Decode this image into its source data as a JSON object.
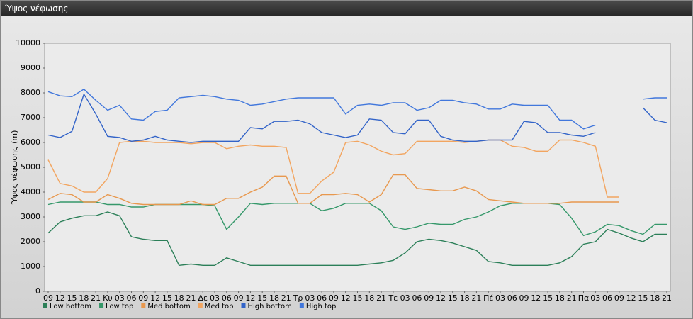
{
  "window_title": "Ύψος νέφωσης",
  "chart_data": {
    "type": "line",
    "ylabel": "Ύψος νέφωσης (m)",
    "categories": [
      "09",
      "12",
      "15",
      "18",
      "21",
      "Κυ",
      "03",
      "06",
      "09",
      "12",
      "15",
      "18",
      "21",
      "Δε",
      "03",
      "06",
      "09",
      "12",
      "15",
      "18",
      "21",
      "Τρ",
      "03",
      "06",
      "09",
      "12",
      "15",
      "18",
      "21",
      "Τε",
      "03",
      "06",
      "09",
      "12",
      "15",
      "18",
      "21",
      "Πέ",
      "03",
      "06",
      "09",
      "12",
      "15",
      "18",
      "21",
      "Πα",
      "03",
      "06",
      "09",
      "12",
      "15",
      "18",
      "21"
    ],
    "ylim": [
      0,
      10000
    ],
    "yticks": [
      0,
      1000,
      2000,
      3000,
      4000,
      5000,
      6000,
      7000,
      8000,
      9000,
      10000
    ],
    "grid": false,
    "series": [
      {
        "name": "Low bottom",
        "color": "#2b7f58",
        "values": [
          2350,
          2800,
          2950,
          3050,
          3050,
          3200,
          3050,
          2200,
          2100,
          2050,
          2050,
          1050,
          1100,
          1050,
          1050,
          1350,
          1200,
          1050,
          1050,
          1050,
          1050,
          1050,
          1050,
          1050,
          1050,
          1050,
          1050,
          1100,
          1150,
          1250,
          1550,
          2000,
          2100,
          2050,
          1950,
          1800,
          1650,
          1200,
          1150,
          1050,
          1050,
          1050,
          1050,
          1150,
          1400,
          1900,
          2000,
          2500,
          2350,
          2150,
          2000,
          2300,
          2300
        ]
      },
      {
        "name": "Low top",
        "color": "#35986a",
        "values": [
          3500,
          3600,
          3600,
          3600,
          3600,
          3500,
          3500,
          3400,
          3400,
          3500,
          3500,
          3500,
          3500,
          3500,
          3450,
          2500,
          3000,
          3550,
          3500,
          3550,
          3550,
          3550,
          3550,
          3250,
          3350,
          3550,
          3550,
          3550,
          3250,
          2600,
          2500,
          2600,
          2750,
          2700,
          2700,
          2900,
          3000,
          3200,
          3450,
          3550,
          3550,
          3550,
          3550,
          3500,
          2950,
          2250,
          2400,
          2700,
          2650,
          2450,
          2300,
          2700,
          2700
        ]
      },
      {
        "name": "Med bottom",
        "color": "#e8984e",
        "values": [
          3700,
          3950,
          3900,
          3600,
          3600,
          3900,
          3750,
          3550,
          3500,
          3500,
          3500,
          3500,
          3650,
          3500,
          3500,
          3750,
          3750,
          4000,
          4200,
          4650,
          4650,
          3550,
          3550,
          3900,
          3900,
          3950,
          3900,
          3600,
          3900,
          4700,
          4700,
          4150,
          4100,
          4050,
          4050,
          4200,
          4050,
          3700,
          3650,
          3600,
          3550,
          3550,
          3550,
          3550,
          3600,
          3600,
          3600,
          3600,
          3600,
          null,
          null,
          null,
          null
        ]
      },
      {
        "name": "Med top",
        "color": "#f2a560",
        "values": [
          5300,
          4350,
          4250,
          4000,
          4000,
          4550,
          6000,
          6050,
          6050,
          6000,
          6000,
          6000,
          5950,
          6000,
          6000,
          5750,
          5850,
          5900,
          5850,
          5850,
          5800,
          3950,
          3950,
          4450,
          4800,
          6000,
          6050,
          5900,
          5650,
          5500,
          5550,
          6050,
          6050,
          6050,
          6050,
          6000,
          6050,
          6100,
          6100,
          5850,
          5800,
          5650,
          5650,
          6100,
          6100,
          6000,
          5850,
          3800,
          3800,
          null,
          null,
          null,
          null
        ]
      },
      {
        "name": "High bottom",
        "color": "#3263c8",
        "values": [
          6300,
          6200,
          6450,
          7950,
          7150,
          6250,
          6200,
          6050,
          6100,
          6250,
          6100,
          6050,
          6000,
          6050,
          6050,
          6050,
          6050,
          6600,
          6550,
          6850,
          6850,
          6900,
          6750,
          6400,
          6300,
          6200,
          6300,
          6950,
          6900,
          6400,
          6350,
          6900,
          6900,
          6250,
          6100,
          6050,
          6050,
          6100,
          6100,
          6100,
          6850,
          6800,
          6400,
          6400,
          6300,
          6250,
          6400,
          null,
          null,
          null,
          7400,
          6900,
          6800
        ]
      },
      {
        "name": "High top",
        "color": "#4177dc",
        "values": [
          8050,
          7880,
          7850,
          8150,
          7700,
          7300,
          7500,
          6950,
          6900,
          7250,
          7300,
          7800,
          7850,
          7900,
          7850,
          7750,
          7700,
          7500,
          7550,
          7650,
          7750,
          7800,
          7800,
          7800,
          7800,
          7150,
          7500,
          7550,
          7500,
          7600,
          7600,
          7300,
          7400,
          7700,
          7700,
          7600,
          7550,
          7350,
          7350,
          7550,
          7500,
          7500,
          7500,
          6900,
          6900,
          6550,
          6700,
          null,
          null,
          null,
          7750,
          7800,
          7800
        ]
      }
    ]
  }
}
